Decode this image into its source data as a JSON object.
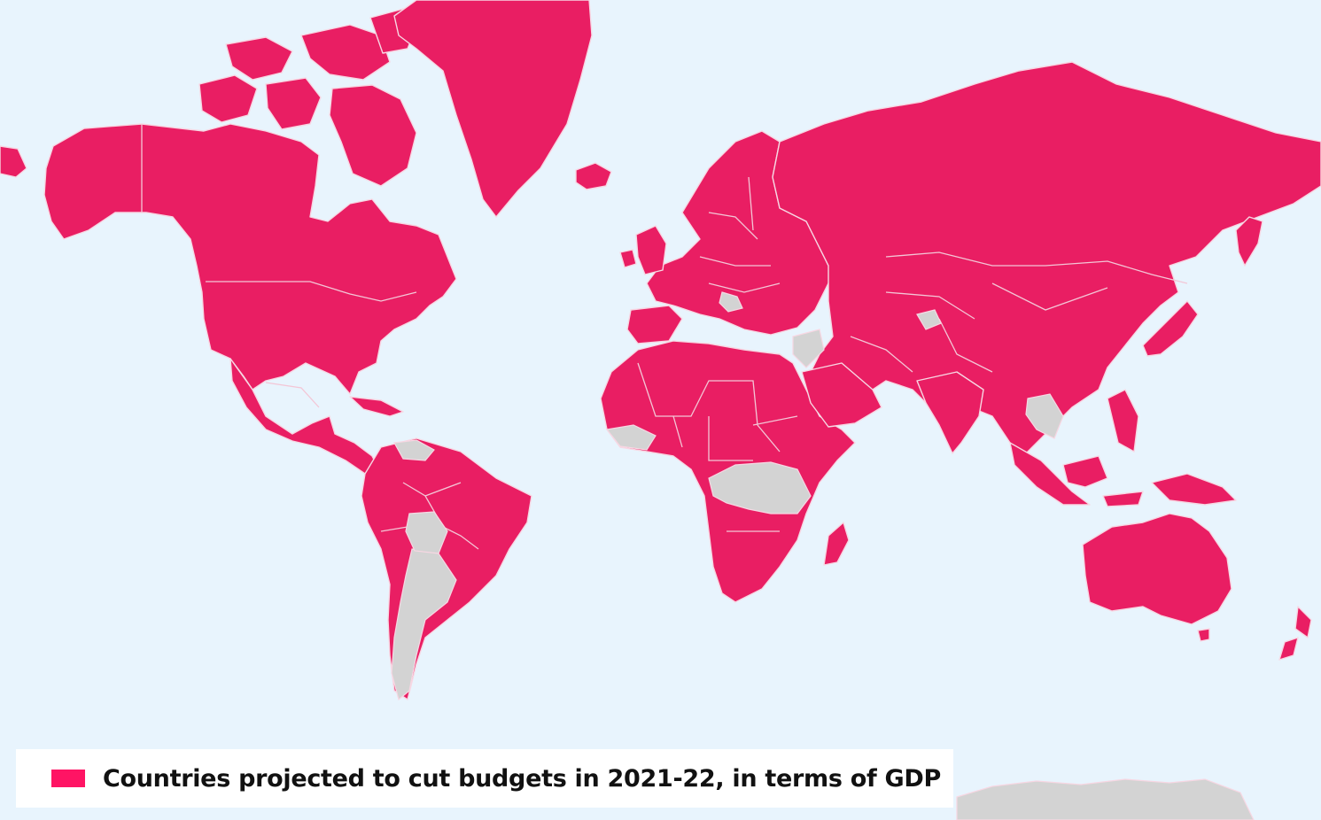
{
  "map": {
    "colors": {
      "ocean": "#e8f4fd",
      "cut_budget": "#e91e63",
      "no_cut_or_no_data": "#d3d3d3",
      "borders": "#f3c6d6"
    },
    "regions_not_cutting": [
      "Argentina",
      "Bolivia",
      "Guyana",
      "Central Africa",
      "Thailand",
      "Laos",
      "Syria",
      "Jordan",
      "Antarctica"
    ]
  },
  "legend": {
    "label": "Countries projected to cut budgets in 2021-22, in terms of GDP",
    "swatch_color": "#ff1464"
  }
}
